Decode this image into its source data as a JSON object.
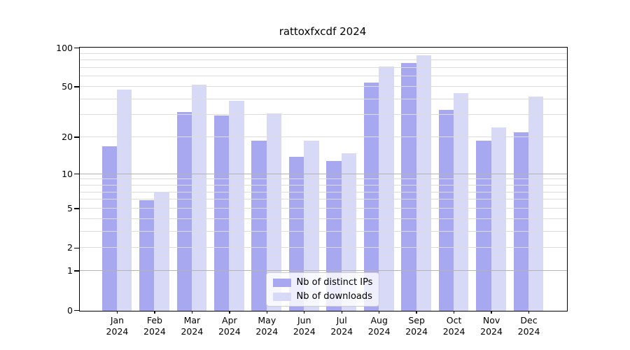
{
  "chart_data": {
    "type": "bar",
    "title": "rattoxfxcdf 2024",
    "xlabel": "",
    "ylabel": "",
    "categories": [
      {
        "month": "Jan",
        "year": "2024"
      },
      {
        "month": "Feb",
        "year": "2024"
      },
      {
        "month": "Mar",
        "year": "2024"
      },
      {
        "month": "Apr",
        "year": "2024"
      },
      {
        "month": "May",
        "year": "2024"
      },
      {
        "month": "Jun",
        "year": "2024"
      },
      {
        "month": "Jul",
        "year": "2024"
      },
      {
        "month": "Aug",
        "year": "2024"
      },
      {
        "month": "Sep",
        "year": "2024"
      },
      {
        "month": "Oct",
        "year": "2024"
      },
      {
        "month": "Nov",
        "year": "2024"
      },
      {
        "month": "Dec",
        "year": "2024"
      }
    ],
    "series": [
      {
        "name": "Nb of distinct IPs",
        "color": "#a8a8f0",
        "values": [
          17,
          6,
          32,
          30,
          19,
          14,
          13,
          54,
          77,
          33,
          19,
          22
        ]
      },
      {
        "name": "Nb of downloads",
        "color": "#d8d8f7",
        "values": [
          48,
          7,
          52,
          39,
          31,
          19,
          15,
          72,
          88,
          45,
          24,
          42
        ]
      }
    ],
    "yscale": "log(1+v)",
    "ylim": [
      0,
      100
    ],
    "yticks": [
      100,
      50,
      20,
      10,
      5,
      2,
      1,
      0
    ],
    "grid": "horizontal major+minor, drawn over bars",
    "legend_position": "lower center",
    "colors": {
      "axis": "#000000",
      "major_grid": "#b3b3b3",
      "minor_grid": "#dcdcdc",
      "background": "#ffffff"
    }
  }
}
